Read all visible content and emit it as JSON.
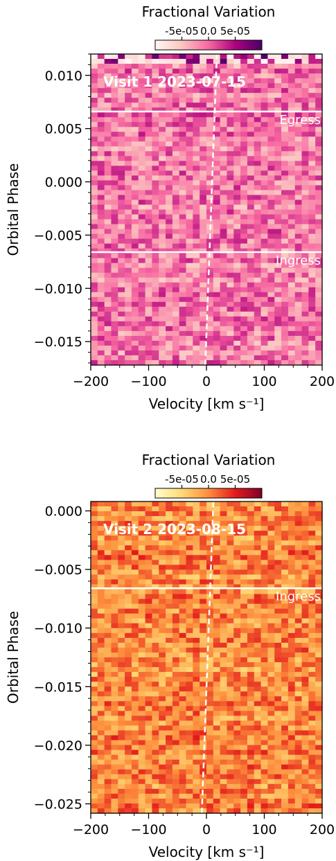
{
  "chart_data": [
    {
      "type": "heatmap",
      "title": "Visit 1 2023-07-15",
      "colorbar": {
        "label": "Fractional Variation",
        "tick_labels": [
          "-5e-05",
          "0.0",
          "5e-05"
        ],
        "range": [
          -0.0001,
          0.0001
        ],
        "colormap": "RdPu",
        "colors": [
          "#fff7f3",
          "#fcc5c0",
          "#f768a1",
          "#ae017e",
          "#49006a"
        ]
      },
      "xlabel": "Velocity [km s⁻¹]",
      "ylabel": "Orbital Phase",
      "xlim": [
        -200,
        200
      ],
      "ylim": [
        -0.0172,
        0.012
      ],
      "x_ticks": [
        -200,
        -100,
        0,
        100,
        200
      ],
      "x_tick_labels": [
        "−200",
        "−100",
        "0",
        "100",
        "200"
      ],
      "y_ticks": [
        0.01,
        0.005,
        0.0,
        -0.005,
        -0.01,
        -0.015
      ],
      "y_tick_labels": [
        "0.010",
        "0.005",
        "0.000",
        "−0.005",
        "−0.010",
        "−0.015"
      ],
      "base_level": 0.45,
      "top_noise_rows": 2,
      "seed": 11,
      "trail": {
        "x": [
          -2,
          18
        ],
        "y": [
          -0.0172,
          0.012
        ],
        "color": "#ffffff"
      },
      "hlines": [
        {
          "y": 0.0066,
          "label": "Egress"
        },
        {
          "y": -0.0066,
          "label": "Ingress"
        }
      ]
    },
    {
      "type": "heatmap",
      "title": "Visit 2 2023-08-15",
      "colorbar": {
        "label": "Fractional Variation",
        "tick_labels": [
          "-5e-05",
          "0.0",
          "5e-05"
        ],
        "range": [
          -0.0001,
          0.0001
        ],
        "colormap": "YlOrRd",
        "colors": [
          "#ffffcc",
          "#fed976",
          "#fd8d3c",
          "#e31a1c",
          "#800026"
        ]
      },
      "xlabel": "Velocity [km s⁻¹]",
      "ylabel": "Orbital Phase",
      "xlim": [
        -200,
        200
      ],
      "ylim": [
        -0.0258,
        0.0008
      ],
      "x_ticks": [
        -200,
        -100,
        0,
        100,
        200
      ],
      "x_tick_labels": [
        "−200",
        "−100",
        "0",
        "100",
        "200"
      ],
      "y_ticks": [
        0.0,
        -0.005,
        -0.01,
        -0.015,
        -0.02,
        -0.025
      ],
      "y_tick_labels": [
        "0.000",
        "−0.005",
        "−0.010",
        "−0.015",
        "−0.020",
        "−0.025"
      ],
      "base_level": 0.5,
      "top_noise_rows": 0,
      "seed": 29,
      "trail": {
        "x": [
          -8,
          12
        ],
        "y": [
          -0.0258,
          0.0008
        ],
        "color": "#ffffff"
      },
      "hlines": [
        {
          "y": -0.0066,
          "label": "Ingress"
        }
      ]
    }
  ]
}
